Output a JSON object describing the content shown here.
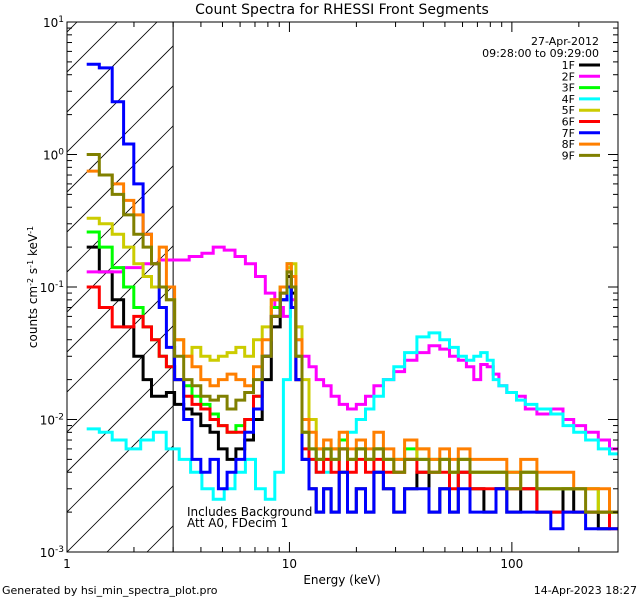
{
  "chart_data": {
    "type": "line",
    "title": "Count Spectra for RHESSI Front Segments",
    "xlabel": "Energy (keV)",
    "ylabel_parts": [
      "counts cm",
      "-2",
      " s",
      "-1",
      " keV",
      "-1"
    ],
    "xscale": "log",
    "yscale": "log",
    "xlim": [
      1,
      300
    ],
    "ylim": [
      0.001,
      10
    ],
    "x_ticks": [
      {
        "value": 10,
        "label": "10"
      },
      {
        "value": 100,
        "label": "100"
      }
    ],
    "x_edge_label": "1",
    "y_ticks": [
      {
        "value": 0.001,
        "base": "10",
        "exp": "-3"
      },
      {
        "value": 0.01,
        "base": "10",
        "exp": "-2"
      },
      {
        "value": 0.1,
        "base": "10",
        "exp": "-1"
      },
      {
        "value": 1,
        "base": "10",
        "exp": "0"
      },
      {
        "value": 10,
        "base": "10",
        "exp": "1"
      }
    ],
    "hatched_region_max_energy": 3,
    "date": "27-Apr-2012",
    "time_range": "09:28:00 to 09:29:00",
    "annotations": [
      "Includes Background",
      "Att A0, FDecim 1"
    ],
    "footer_left": "Generated by hsi_min_spectra_plot.pro",
    "footer_right": "14-Apr-2023 18:27",
    "grid": false,
    "legend_position": "top-right",
    "series": [
      {
        "name": "1F",
        "color": "#000000",
        "x": [
          1.3,
          1.5,
          1.7,
          1.9,
          2.1,
          2.3,
          2.5,
          2.7,
          2.9,
          3.2,
          3.5,
          3.8,
          4.2,
          4.6,
          5.0,
          5.5,
          6.0,
          6.6,
          7.2,
          7.9,
          8.7,
          9.5,
          10.0,
          10.4,
          11.0,
          11.8,
          12.7,
          13.7,
          14.8,
          16,
          17.5,
          19,
          21,
          23,
          25,
          28,
          31,
          35,
          40,
          45,
          50,
          55,
          60,
          70,
          80,
          90,
          100,
          120,
          140,
          160,
          180,
          200,
          230,
          260,
          290
        ],
        "y": [
          0.2,
          0.13,
          0.08,
          0.05,
          0.03,
          0.02,
          0.015,
          0.015,
          0.016,
          0.013,
          0.012,
          0.011,
          0.009,
          0.008,
          0.006,
          0.005,
          0.006,
          0.007,
          0.01,
          0.02,
          0.05,
          0.08,
          0.12,
          0.09,
          0.02,
          0.005,
          0.003,
          0.002,
          0.003,
          0.002,
          0.004,
          0.002,
          0.003,
          0.002,
          0.004,
          0.003,
          0.002,
          0.003,
          0.004,
          0.002,
          0.003,
          0.002,
          0.004,
          0.003,
          0.002,
          0.003,
          0.002,
          0.003,
          0.002,
          0.002,
          0.003,
          0.002,
          0.002,
          0.0015,
          0.002
        ]
      },
      {
        "name": "2F",
        "color": "#ff00ff",
        "x": [
          1.3,
          1.6,
          2.0,
          2.4,
          2.8,
          3.3,
          3.8,
          4.3,
          4.8,
          5.4,
          6.0,
          6.7,
          7.4,
          8.2,
          9.0,
          9.8,
          10.4,
          11.0,
          11.8,
          12.7,
          13.7,
          14.8,
          16,
          17.5,
          19,
          21,
          23,
          25,
          28,
          31,
          35,
          40,
          45,
          50,
          55,
          60,
          65,
          70,
          75,
          80,
          85,
          90,
          100,
          110,
          120,
          140,
          160,
          180,
          200,
          230,
          260,
          290
        ],
        "y": [
          0.13,
          0.13,
          0.14,
          0.15,
          0.16,
          0.16,
          0.17,
          0.18,
          0.2,
          0.19,
          0.17,
          0.15,
          0.12,
          0.09,
          0.07,
          0.06,
          0.08,
          0.05,
          0.03,
          0.025,
          0.02,
          0.018,
          0.015,
          0.013,
          0.012,
          0.013,
          0.015,
          0.018,
          0.02,
          0.023,
          0.028,
          0.032,
          0.036,
          0.034,
          0.03,
          0.028,
          0.025,
          0.02,
          0.026,
          0.025,
          0.022,
          0.018,
          0.016,
          0.015,
          0.012,
          0.011,
          0.012,
          0.01,
          0.009,
          0.008,
          0.007,
          0.006
        ]
      },
      {
        "name": "3F",
        "color": "#00ff00",
        "x": [
          1.3,
          1.5,
          1.7,
          1.9,
          2.1,
          2.3,
          2.5,
          2.7,
          2.9,
          3.2,
          3.5,
          3.8,
          4.2,
          4.6,
          5.0,
          5.5,
          6.0,
          6.6,
          7.2,
          7.9,
          8.7,
          9.5,
          10.0,
          10.4,
          11.0,
          11.8,
          12.7,
          13.7,
          14.8,
          16,
          17.5,
          19,
          21,
          23,
          25,
          28,
          31,
          35,
          40,
          45,
          50,
          55,
          60,
          70,
          80,
          90,
          100,
          120,
          140,
          160,
          180,
          200,
          230,
          260,
          290
        ],
        "y": [
          0.26,
          0.2,
          0.14,
          0.1,
          0.07,
          0.05,
          0.04,
          0.03,
          0.025,
          0.02,
          0.018,
          0.015,
          0.013,
          0.011,
          0.009,
          0.008,
          0.009,
          0.01,
          0.015,
          0.03,
          0.07,
          0.1,
          0.15,
          0.1,
          0.03,
          0.008,
          0.006,
          0.005,
          0.006,
          0.005,
          0.007,
          0.005,
          0.006,
          0.005,
          0.006,
          0.005,
          0.005,
          0.006,
          0.005,
          0.005,
          0.005,
          0.004,
          0.005,
          0.004,
          0.004,
          0.004,
          0.004,
          0.004,
          0.003,
          0.003,
          0.003,
          0.003,
          0.003,
          0.002,
          0.002
        ]
      },
      {
        "name": "4F",
        "color": "#00ffff",
        "x": [
          1.3,
          1.5,
          1.7,
          2.0,
          2.3,
          2.6,
          3.0,
          3.4,
          3.8,
          4.3,
          4.8,
          5.4,
          6.0,
          6.7,
          7.4,
          8.2,
          9.0,
          9.8,
          10.4,
          11.0,
          11.8,
          12.7,
          13.7,
          14.8,
          16,
          17.5,
          19,
          21,
          23,
          25,
          28,
          31,
          35,
          40,
          45,
          50,
          55,
          60,
          65,
          70,
          75,
          80,
          85,
          90,
          100,
          110,
          120,
          140,
          160,
          180,
          200,
          230,
          260,
          290
        ],
        "y": [
          0.0085,
          0.008,
          0.007,
          0.006,
          0.007,
          0.008,
          0.006,
          0.005,
          0.004,
          0.003,
          0.0025,
          0.003,
          0.004,
          0.005,
          0.003,
          0.0025,
          0.004,
          0.02,
          0.1,
          0.04,
          0.01,
          0.005,
          0.004,
          0.004,
          0.005,
          0.006,
          0.008,
          0.01,
          0.012,
          0.015,
          0.02,
          0.025,
          0.032,
          0.042,
          0.045,
          0.04,
          0.035,
          0.03,
          0.028,
          0.03,
          0.032,
          0.028,
          0.02,
          0.018,
          0.016,
          0.014,
          0.013,
          0.012,
          0.011,
          0.009,
          0.008,
          0.007,
          0.006,
          0.0055
        ]
      },
      {
        "name": "5F",
        "color": "#cccc00",
        "x": [
          1.3,
          1.5,
          1.7,
          1.9,
          2.1,
          2.3,
          2.5,
          2.7,
          2.9,
          3.2,
          3.5,
          3.8,
          4.2,
          4.6,
          5.0,
          5.5,
          6.0,
          6.6,
          7.2,
          7.9,
          8.7,
          9.5,
          10.0,
          10.4,
          11.0,
          11.8,
          12.7,
          13.7,
          14.8,
          16,
          17.5,
          19,
          21,
          23,
          25,
          28,
          31,
          35,
          40,
          45,
          50,
          55,
          60,
          70,
          80,
          90,
          100,
          120,
          140,
          160,
          180,
          200,
          230,
          260,
          290
        ],
        "y": [
          0.33,
          0.3,
          0.25,
          0.2,
          0.15,
          0.12,
          0.1,
          0.1,
          0.08,
          0.04,
          0.03,
          0.035,
          0.03,
          0.028,
          0.03,
          0.032,
          0.035,
          0.03,
          0.04,
          0.05,
          0.08,
          0.1,
          0.14,
          0.15,
          0.05,
          0.02,
          0.01,
          0.006,
          0.005,
          0.006,
          0.004,
          0.005,
          0.006,
          0.005,
          0.006,
          0.005,
          0.004,
          0.005,
          0.006,
          0.004,
          0.005,
          0.004,
          0.005,
          0.004,
          0.004,
          0.004,
          0.003,
          0.004,
          0.003,
          0.003,
          0.003,
          0.003,
          0.003,
          0.002,
          0.002
        ]
      },
      {
        "name": "6F",
        "color": "#ff0000",
        "x": [
          1.3,
          1.5,
          1.7,
          1.9,
          2.1,
          2.3,
          2.5,
          2.7,
          2.9,
          3.2,
          3.5,
          3.8,
          4.2,
          4.6,
          5.0,
          5.5,
          6.0,
          6.6,
          7.2,
          7.9,
          8.7,
          9.5,
          10.0,
          10.4,
          11.0,
          11.8,
          12.7,
          13.7,
          14.8,
          16,
          17.5,
          19,
          21,
          23,
          25,
          28,
          31,
          35,
          40,
          45,
          50,
          55,
          60,
          70,
          80,
          90,
          100,
          120,
          140,
          160,
          180,
          200,
          230,
          260,
          290
        ],
        "y": [
          0.1,
          0.07,
          0.05,
          0.05,
          0.06,
          0.05,
          0.04,
          0.03,
          0.025,
          0.02,
          0.015,
          0.013,
          0.012,
          0.01,
          0.009,
          0.008,
          0.008,
          0.01,
          0.015,
          0.03,
          0.06,
          0.09,
          0.13,
          0.1,
          0.02,
          0.006,
          0.005,
          0.004,
          0.005,
          0.004,
          0.006,
          0.004,
          0.005,
          0.004,
          0.005,
          0.004,
          0.004,
          0.005,
          0.004,
          0.004,
          0.004,
          0.003,
          0.004,
          0.003,
          0.003,
          0.003,
          0.003,
          0.003,
          0.002,
          0.002,
          0.002,
          0.002,
          0.002,
          0.002,
          0.0015
        ]
      },
      {
        "name": "7F",
        "color": "#0000ff",
        "x": [
          1.3,
          1.5,
          1.7,
          1.9,
          2.1,
          2.3,
          2.5,
          2.7,
          2.9,
          3.2,
          3.5,
          3.8,
          4.2,
          4.6,
          5.0,
          5.5,
          6.0,
          6.6,
          7.2,
          7.9,
          8.7,
          9.5,
          10.0,
          10.4,
          11.0,
          11.8,
          12.7,
          13.7,
          14.8,
          16,
          17.5,
          19,
          21,
          23,
          25,
          28,
          31,
          35,
          40,
          45,
          50,
          55,
          60,
          70,
          80,
          90,
          100,
          120,
          140,
          160,
          180,
          200,
          230,
          260,
          290
        ],
        "y": [
          4.8,
          4.5,
          2.5,
          1.2,
          0.6,
          0.25,
          0.15,
          0.07,
          0.035,
          0.02,
          0.01,
          0.005,
          0.004,
          0.005,
          0.003,
          0.004,
          0.005,
          0.008,
          0.012,
          0.03,
          0.06,
          0.08,
          0.1,
          0.07,
          0.02,
          0.005,
          0.003,
          0.002,
          0.003,
          0.002,
          0.004,
          0.002,
          0.003,
          0.002,
          0.004,
          0.003,
          0.002,
          0.003,
          0.003,
          0.002,
          0.003,
          0.002,
          0.003,
          0.002,
          0.002,
          0.003,
          0.002,
          0.002,
          0.002,
          0.0015,
          0.002,
          0.002,
          0.0015,
          0.0015,
          0.0015
        ]
      },
      {
        "name": "8F",
        "color": "#ff7f00",
        "x": [
          1.3,
          1.5,
          1.7,
          1.9,
          2.1,
          2.3,
          2.5,
          2.7,
          2.9,
          3.2,
          3.5,
          3.8,
          4.2,
          4.6,
          5.0,
          5.5,
          6.0,
          6.6,
          7.2,
          7.9,
          8.7,
          9.5,
          10.0,
          10.4,
          11.0,
          11.8,
          12.7,
          13.7,
          14.8,
          16,
          17.5,
          19,
          21,
          23,
          25,
          28,
          31,
          35,
          40,
          45,
          50,
          55,
          60,
          70,
          80,
          90,
          100,
          120,
          140,
          160,
          180,
          200,
          230,
          260,
          290
        ],
        "y": [
          0.75,
          0.7,
          0.6,
          0.45,
          0.35,
          0.25,
          0.15,
          0.2,
          0.1,
          0.04,
          0.03,
          0.025,
          0.02,
          0.018,
          0.02,
          0.022,
          0.02,
          0.018,
          0.025,
          0.04,
          0.08,
          0.1,
          0.15,
          0.12,
          0.04,
          0.01,
          0.008,
          0.006,
          0.007,
          0.006,
          0.008,
          0.006,
          0.007,
          0.006,
          0.008,
          0.006,
          0.005,
          0.007,
          0.006,
          0.005,
          0.006,
          0.005,
          0.006,
          0.005,
          0.005,
          0.005,
          0.004,
          0.005,
          0.004,
          0.004,
          0.004,
          0.003,
          0.003,
          0.003,
          0.002
        ]
      },
      {
        "name": "9F",
        "color": "#808000",
        "x": [
          1.3,
          1.5,
          1.7,
          1.9,
          2.1,
          2.3,
          2.5,
          2.7,
          2.9,
          3.2,
          3.5,
          3.8,
          4.2,
          4.6,
          5.0,
          5.5,
          6.0,
          6.6,
          7.2,
          7.9,
          8.7,
          9.5,
          10.0,
          10.4,
          11.0,
          11.8,
          12.7,
          13.7,
          14.8,
          16,
          17.5,
          19,
          21,
          23,
          25,
          28,
          31,
          35,
          40,
          45,
          50,
          55,
          60,
          70,
          80,
          90,
          100,
          120,
          140,
          160,
          180,
          200,
          230,
          260,
          290
        ],
        "y": [
          1.0,
          0.7,
          0.5,
          0.35,
          0.25,
          0.2,
          0.15,
          0.1,
          0.08,
          0.03,
          0.02,
          0.018,
          0.015,
          0.014,
          0.015,
          0.012,
          0.014,
          0.016,
          0.02,
          0.03,
          0.06,
          0.09,
          0.13,
          0.1,
          0.03,
          0.008,
          0.006,
          0.005,
          0.006,
          0.005,
          0.006,
          0.005,
          0.006,
          0.005,
          0.006,
          0.005,
          0.004,
          0.005,
          0.005,
          0.004,
          0.005,
          0.004,
          0.005,
          0.004,
          0.004,
          0.004,
          0.003,
          0.004,
          0.003,
          0.003,
          0.003,
          0.003,
          0.002,
          0.002,
          0.002
        ]
      }
    ]
  }
}
